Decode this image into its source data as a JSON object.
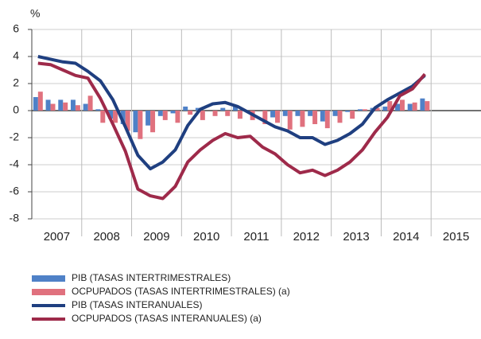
{
  "chart_data": {
    "type": "bar_line",
    "y_axis_label": "%",
    "categories": [
      "2007",
      null,
      null,
      null,
      "2008",
      null,
      null,
      null,
      "2009",
      null,
      null,
      null,
      "2010",
      null,
      null,
      null,
      "2011",
      null,
      null,
      null,
      "2012",
      null,
      null,
      null,
      "2013",
      null,
      null,
      null,
      "2014",
      null,
      null,
      null,
      "2015",
      null,
      null,
      null
    ],
    "ylim": [
      -8,
      6
    ],
    "yticks": [
      -8,
      -6,
      -4,
      -2,
      0,
      2,
      4,
      6
    ],
    "grid": true,
    "series": [
      {
        "name": "PIB  (TASAS INTERTRIMESTRALES)",
        "kind": "bar",
        "color": "#4f81c7",
        "values": [
          1.0,
          0.8,
          0.8,
          0.8,
          0.5,
          0.1,
          -0.6,
          -1.0,
          -1.6,
          -1.1,
          -0.4,
          -0.2,
          0.3,
          0.2,
          0.0,
          0.2,
          0.4,
          0.0,
          0.0,
          -0.5,
          -0.4,
          -0.4,
          -0.4,
          -0.8,
          -0.4,
          -0.1,
          0.1,
          0.2,
          0.3,
          0.5,
          0.5,
          0.9,
          null,
          null,
          null,
          null
        ]
      },
      {
        "name": "OCPUPADOS (TASAS INTERTRIMESTRALES) (a)",
        "kind": "bar",
        "color": "#e0717e",
        "values": [
          1.4,
          0.5,
          0.6,
          0.4,
          1.1,
          -0.9,
          -0.9,
          -1.5,
          -2.1,
          -1.6,
          -0.7,
          -0.9,
          -0.3,
          -0.7,
          -0.4,
          -0.4,
          -0.6,
          -0.7,
          -1.0,
          -0.9,
          -1.4,
          -1.2,
          -1.0,
          -1.3,
          -0.9,
          -0.6,
          0.1,
          0.2,
          0.7,
          0.8,
          0.6,
          0.7,
          null,
          null,
          null,
          null
        ]
      },
      {
        "name": "PIB  (TASAS INTERANUALES)",
        "kind": "line",
        "color": "#1f3f80",
        "values": [
          4.0,
          3.8,
          3.6,
          3.5,
          2.9,
          2.2,
          0.8,
          -1.2,
          -3.3,
          -4.3,
          -3.8,
          -2.9,
          -1.1,
          0.1,
          0.5,
          0.6,
          0.3,
          -0.2,
          -0.7,
          -1.2,
          -1.5,
          -2.0,
          -2.0,
          -2.5,
          -2.2,
          -1.7,
          -1.0,
          0.2,
          0.8,
          1.3,
          1.8,
          2.6,
          null,
          null,
          null,
          null
        ]
      },
      {
        "name": "OCPUPADOS (TASAS INTERANUALES) (a)",
        "kind": "line",
        "color": "#9e2a4a",
        "values": [
          3.5,
          3.4,
          3.0,
          2.6,
          2.4,
          0.9,
          -1.0,
          -3.0,
          -5.8,
          -6.3,
          -6.5,
          -5.6,
          -3.8,
          -2.9,
          -2.2,
          -1.7,
          -2.0,
          -1.9,
          -2.7,
          -3.2,
          -4.0,
          -4.6,
          -4.4,
          -4.8,
          -4.4,
          -3.8,
          -2.9,
          -1.6,
          -0.5,
          1.1,
          1.6,
          2.7,
          null,
          null,
          null,
          null
        ]
      }
    ]
  }
}
